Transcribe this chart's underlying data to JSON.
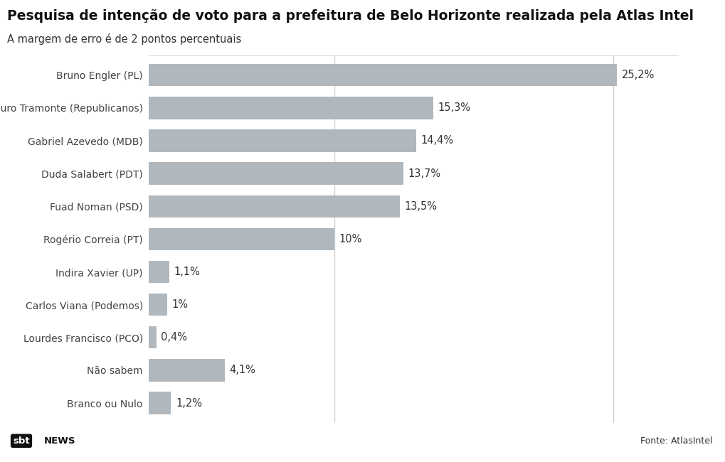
{
  "title": "Pesquisa de intenção de voto para a prefeitura de Belo Horizonte realizada pela Atlas Intel",
  "subtitle": "A margem de erro é de 2 pontos percentuais",
  "categories": [
    "Bruno Engler (PL)",
    "Mauro Tramonte (Republicanos)",
    "Gabriel Azevedo (MDB)",
    "Duda Salabert (PDT)",
    "Fuad Noman (PSD)",
    "Rogério Correia (PT)",
    "Indira Xavier (UP)",
    "Carlos Viana (Podemos)",
    "Lourdes Francisco (PCO)",
    "Não sabem",
    "Branco ou Nulo"
  ],
  "values": [
    25.2,
    15.3,
    14.4,
    13.7,
    13.5,
    10.0,
    1.1,
    1.0,
    0.4,
    4.1,
    1.2
  ],
  "labels": [
    "25,2%",
    "15,3%",
    "14,4%",
    "13,7%",
    "13,5%",
    "10%",
    "1,1%",
    "1%",
    "0,4%",
    "4,1%",
    "1,2%"
  ],
  "bar_color": "#b0b8be",
  "bg_color": "#ffffff",
  "title_fontsize": 13.5,
  "subtitle_fontsize": 10.5,
  "label_fontsize": 10,
  "value_fontsize": 10.5,
  "footer_left": "sbt NEWS",
  "footer_right": "Fonte: AtlasIntel",
  "vline_positions": [
    10.0,
    25.0
  ],
  "xlim": [
    0,
    28.5
  ]
}
